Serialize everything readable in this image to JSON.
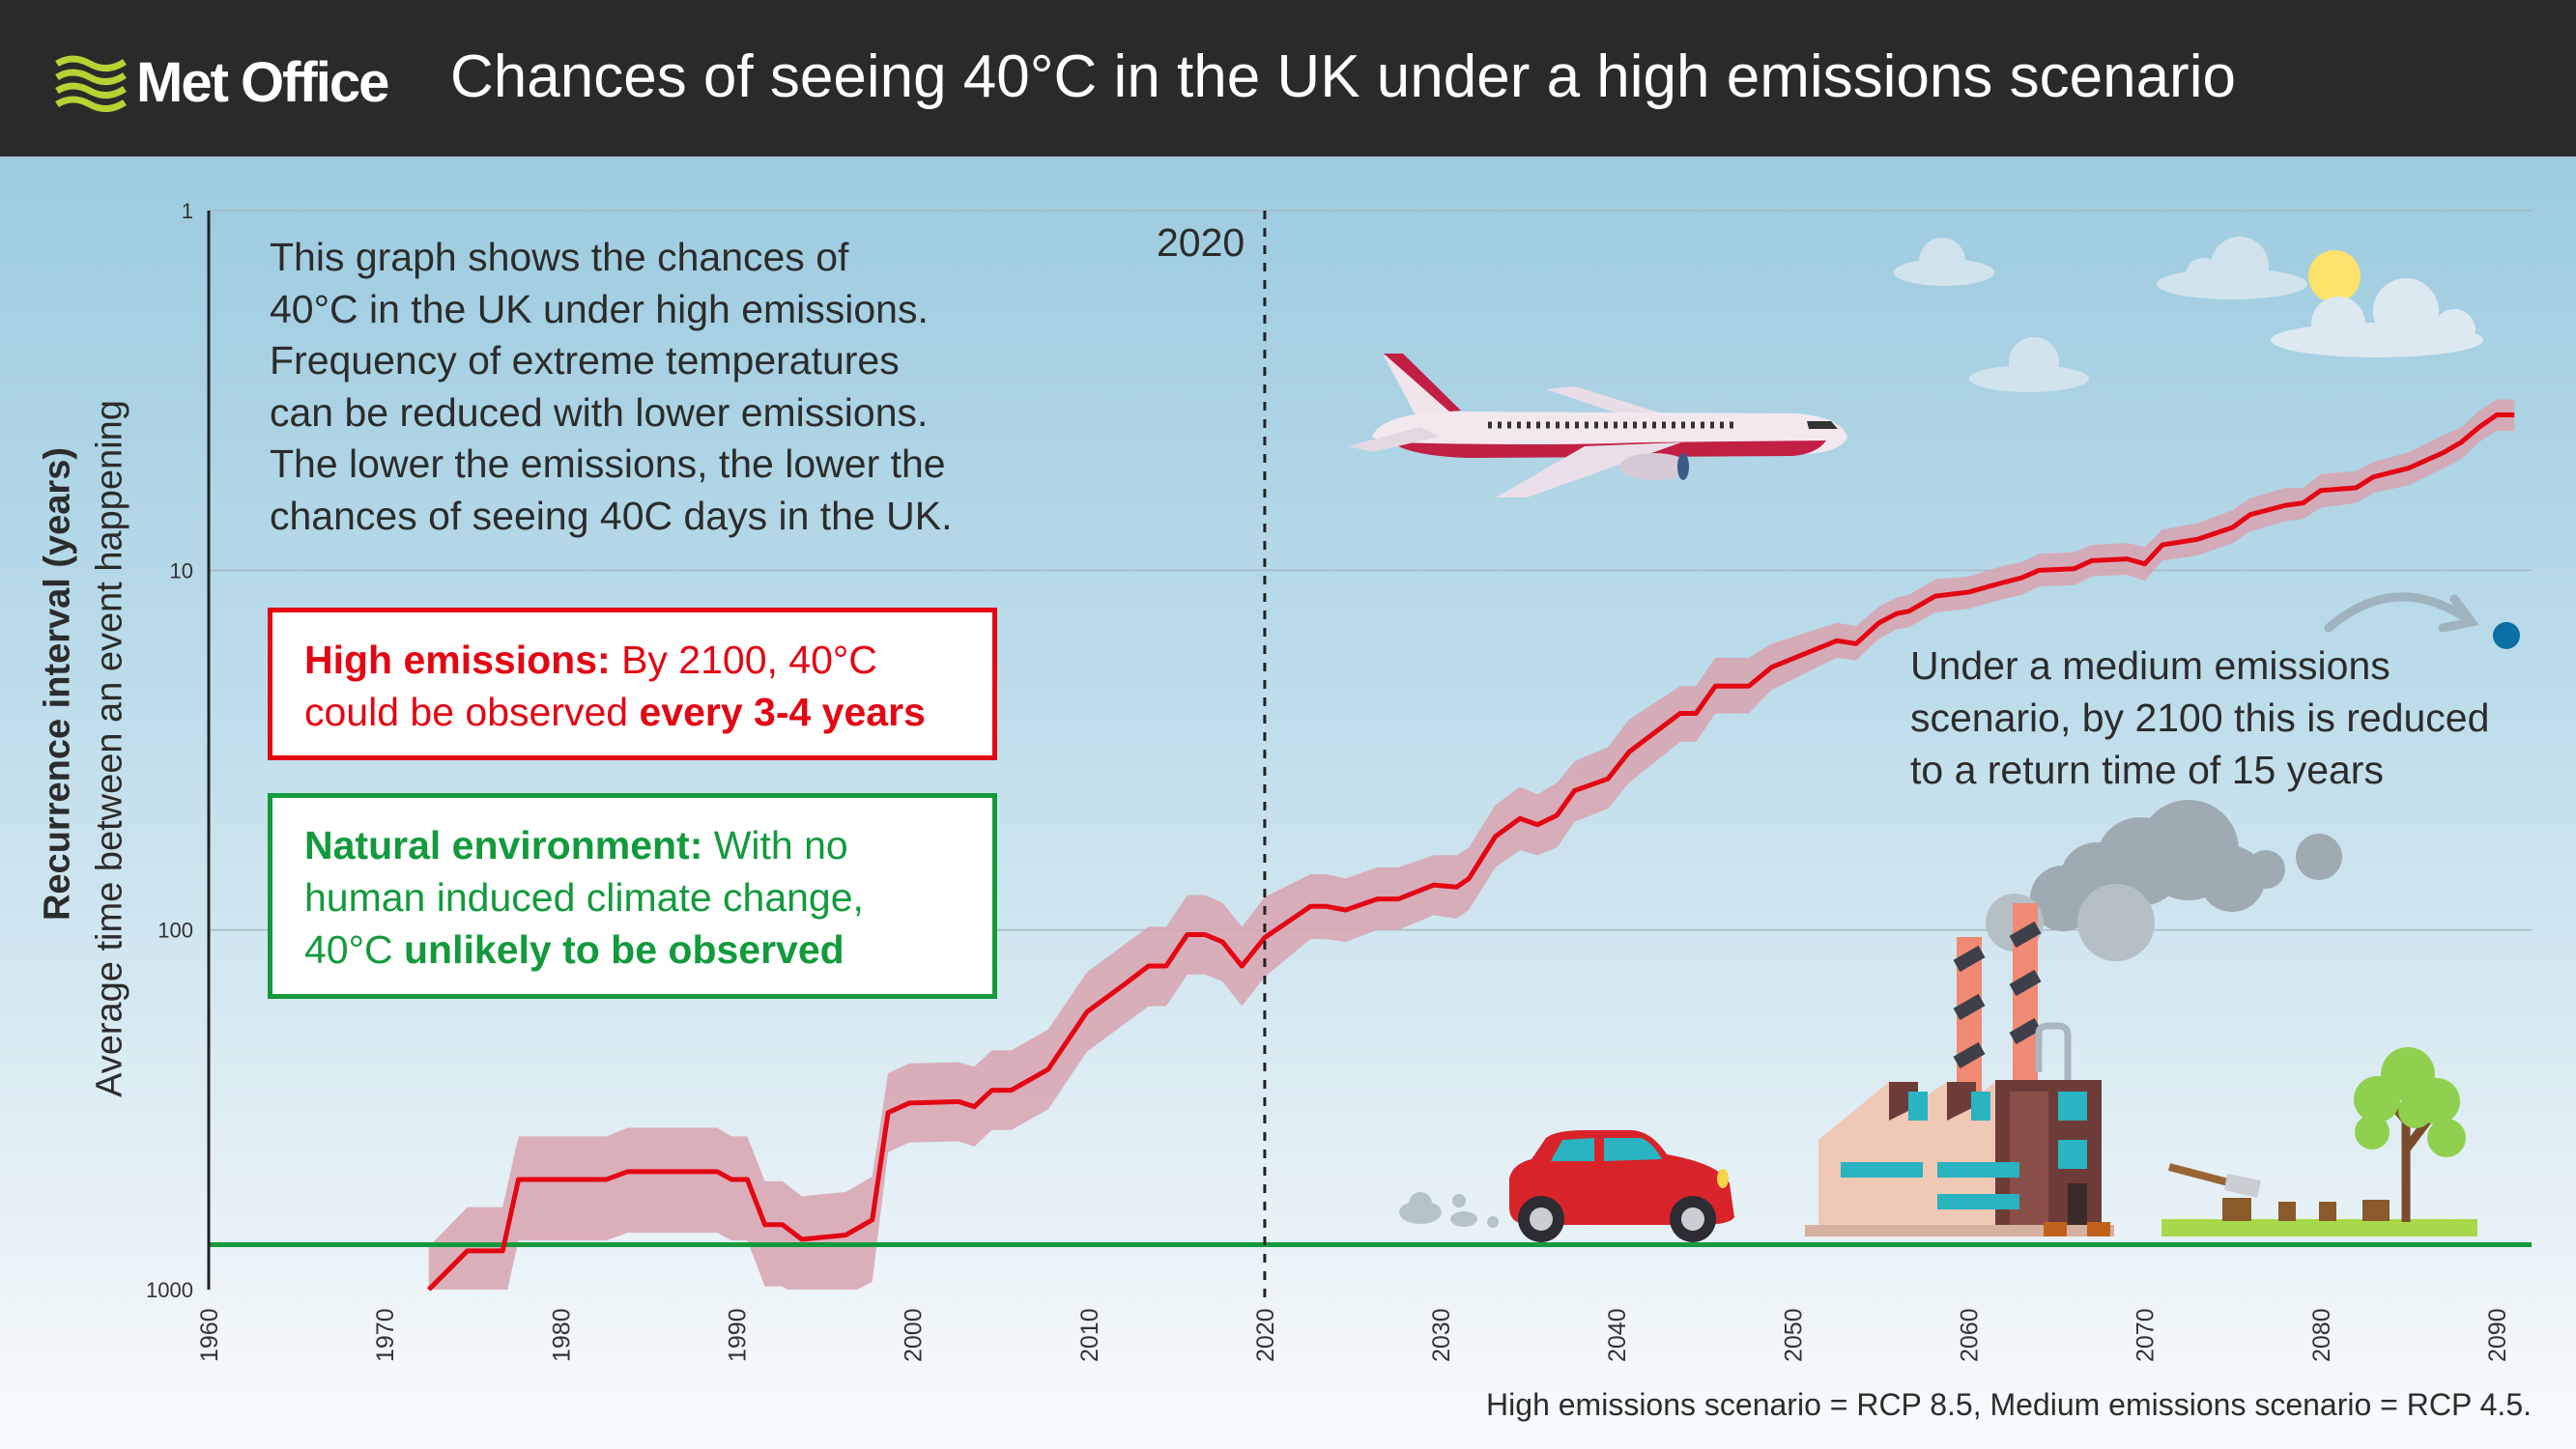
{
  "header": {
    "logo_text": "Met Office",
    "title": "Chances of seeing 40°C in the UK under a high emissions scenario"
  },
  "description": {
    "lines": [
      "This graph shows the chances of",
      "40°C in the UK under high emissions.",
      "Frequency of extreme temperatures",
      "can be reduced with lower emissions.",
      "The lower the emissions, the lower the",
      "chances of seeing 40C days in the UK."
    ]
  },
  "high_box": {
    "bold_lead": "High emissions:",
    "line1_rest": " By 2100, 40°C",
    "line2_start": "could be observed ",
    "bold_end": "every 3-4 years",
    "color": "#e30613"
  },
  "natural_box": {
    "bold_lead": "Natural environment:",
    "line1_rest": " With no",
    "line2": "human induced climate change,",
    "line3_start": "40°C ",
    "bold_end": "unlikely to be observed",
    "color": "#139a3c"
  },
  "medium_note": {
    "lines": [
      "Under a medium emissions",
      "scenario, by 2100 this is reduced",
      "to a return time of 15 years"
    ]
  },
  "footnote": "High emissions scenario = RCP 8.5, Medium emissions scenario = RCP 4.5.",
  "chart_data": {
    "type": "line",
    "ylabel": "Recurrence interval (years)",
    "ylabel_sub": "Average time between an event happening",
    "y_scale": "log",
    "y_reversed": true,
    "ylim": [
      1,
      1000
    ],
    "y_ticks": [
      "1",
      "10",
      "100",
      "1000"
    ],
    "xlim": [
      1960,
      2090
    ],
    "x_ticks": [
      "1960",
      "1970",
      "1980",
      "1990",
      "2000",
      "2010",
      "2020",
      "2030",
      "2040",
      "2050",
      "2060",
      "2070",
      "2080",
      "2090"
    ],
    "grid": "horizontal",
    "marker_year": 2020,
    "marker_label": "2020",
    "line_color": "#e30613",
    "band_color": "#d8a3af",
    "natural_line_color": "#139a3c",
    "natural_line_value": 750,
    "medium_point": {
      "x": 2090,
      "y": 15,
      "color": "#0b6fa4"
    },
    "series": [
      {
        "x": [
          1972.5,
          1974.7,
          1976.7,
          1977.6,
          1982.6,
          1983.8,
          1988.9,
          1989.7,
          1990.6,
          1991.6,
          1992.6,
          1993.7,
          1996.2,
          1997.7,
          1998.6,
          1999.8,
          2002.6,
          2003.5,
          2004.5,
          2005.6,
          2007.7,
          2009.9,
          2012,
          2013.4,
          2014.4,
          2015.6,
          2016.6,
          2017.6,
          2018.7,
          2020,
          2022.6,
          2023.5,
          2024.6,
          2026.4,
          2027.6,
          2029.6,
          2030.9,
          2031.6,
          2033.1,
          2034.5,
          2035.5,
          2036.6,
          2037.6,
          2039.5,
          2040.7,
          2043.6,
          2044.5,
          2045.6,
          2047.5,
          2048.8,
          2052.5,
          2053.6,
          2054.9,
          2055.9,
          2056.6,
          2058.1,
          2060,
          2062,
          2063,
          2064,
          2066,
          2067,
          2069,
          2070,
          2071,
          2073,
          2075,
          2076,
          2078,
          2079,
          2080,
          2082,
          2083,
          2085,
          2087,
          2088,
          2089,
          2090,
          2091
        ],
        "y": [
          1000,
          780,
          780,
          494,
          494,
          470,
          470,
          494,
          494,
          660,
          660,
          725,
          705,
          640,
          322,
          303,
          300,
          310,
          279,
          279,
          244,
          169,
          142,
          126,
          126,
          103,
          103,
          108,
          126,
          105,
          86,
          86,
          88,
          82,
          82,
          75,
          76,
          72,
          55,
          49,
          51,
          48,
          41,
          38,
          32,
          25,
          25,
          21,
          21,
          18.6,
          15.7,
          16,
          14,
          13.2,
          13,
          11.8,
          11.5,
          10.8,
          10.5,
          10,
          9.9,
          9.4,
          9.3,
          9.6,
          8.5,
          8.2,
          7.6,
          7,
          6.6,
          6.5,
          6,
          5.9,
          5.5,
          5.2,
          4.7,
          4.4,
          4,
          3.7,
          3.7
        ],
        "band_low": [
          760,
          590,
          590,
          375,
          375,
          355,
          355,
          375,
          375,
          500,
          500,
          550,
          535,
          485,
          250,
          235,
          233,
          240,
          216,
          216,
          189,
          131,
          110,
          98,
          98,
          80,
          80,
          84,
          98,
          81,
          70,
          70,
          72,
          67,
          67,
          62,
          62,
          59,
          45,
          40,
          42,
          39,
          34,
          31,
          26,
          21,
          21,
          17.5,
          17.5,
          16,
          14,
          14.3,
          12.6,
          11.9,
          11.7,
          10.6,
          10.4,
          9.7,
          9.5,
          9,
          8.9,
          8.5,
          8.4,
          8.6,
          7.7,
          7.4,
          6.8,
          6.3,
          5.9,
          5.9,
          5.4,
          5.3,
          5,
          4.7,
          4.2,
          4,
          3.6,
          3.35,
          3.35
        ],
        "band_high": [
          1480,
          1150,
          1150,
          730,
          730,
          695,
          695,
          730,
          730,
          980,
          980,
          1070,
          1040,
          950,
          415,
          390,
          387,
          400,
          360,
          360,
          315,
          218,
          183,
          163,
          163,
          133,
          133,
          139,
          163,
          135,
          106,
          106,
          108,
          100,
          100,
          91,
          93,
          88,
          67,
          60,
          62,
          59,
          50,
          46,
          39,
          30,
          30,
          25,
          25,
          21.5,
          17.5,
          17.8,
          15.5,
          14.6,
          14.4,
          13.1,
          12.8,
          12,
          11.7,
          11.1,
          11,
          10.4,
          10.3,
          10.7,
          9.4,
          9.1,
          8.4,
          7.8,
          7.3,
          7.2,
          6.7,
          6.5,
          6.1,
          5.8,
          5.2,
          4.9,
          4.4,
          4.1,
          4.1
        ]
      }
    ]
  }
}
